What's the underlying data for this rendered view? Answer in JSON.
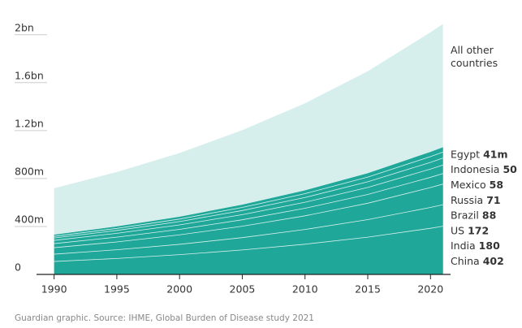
{
  "chart_data": {
    "type": "stacked-area",
    "source": "Guardian graphic. Source: IHME, Global Burden of Disease study 2021",
    "x": [
      1990,
      1995,
      2000,
      2005,
      2010,
      2015,
      2020,
      2021
    ],
    "xlim": [
      1988.6,
      2021.6
    ],
    "xticks": [
      1990,
      1995,
      2000,
      2005,
      2010,
      2015,
      2020
    ],
    "ylim": [
      0,
      2100
    ],
    "yticks": [
      0,
      {
        "value": 400,
        "label": "400m"
      },
      {
        "value": 800,
        "label": "800m"
      },
      {
        "value": 1200,
        "label": "1.2bn"
      },
      {
        "value": 1600,
        "label": "1.6bn"
      },
      {
        "value": 2000,
        "label": "2bn"
      }
    ],
    "series": [
      {
        "name": "China",
        "color": "#1fa899",
        "values": [
          108,
          133,
          165,
          204,
          252,
          311,
          385,
          402
        ]
      },
      {
        "name": "India",
        "color": "#1fa899",
        "values": [
          61,
          73,
          86,
          103,
          123,
          146,
          174,
          180
        ]
      },
      {
        "name": "US",
        "color": "#1fa899",
        "values": [
          54,
          65,
          79,
          95,
          114,
          137,
          166,
          172
        ]
      },
      {
        "name": "Brazil",
        "color": "#1fa899",
        "values": [
          34,
          40,
          46,
          54,
          63,
          73,
          85,
          88
        ]
      },
      {
        "name": "Russia",
        "color": "#1fa899",
        "values": [
          27,
          32,
          37,
          43,
          50,
          59,
          69,
          71
        ]
      },
      {
        "name": "Mexico",
        "color": "#1fa899",
        "values": [
          20,
          24,
          28,
          34,
          40,
          47,
          56,
          58
        ]
      },
      {
        "name": "Indonesia",
        "color": "#1fa899",
        "values": [
          14,
          17,
          21,
          26,
          32,
          39,
          48,
          50
        ]
      },
      {
        "name": "Egypt",
        "color": "#1fa899",
        "values": [
          14,
          17,
          20,
          24,
          28,
          33,
          40,
          41
        ],
        "value_labels": [
          null,
          null,
          null,
          null,
          null,
          null,
          null,
          "41m"
        ]
      },
      {
        "name": "All other countries",
        "color": "#d6efec",
        "values": [
          387,
          453,
          531,
          621,
          726,
          850,
          997,
          1028
        ]
      }
    ]
  }
}
